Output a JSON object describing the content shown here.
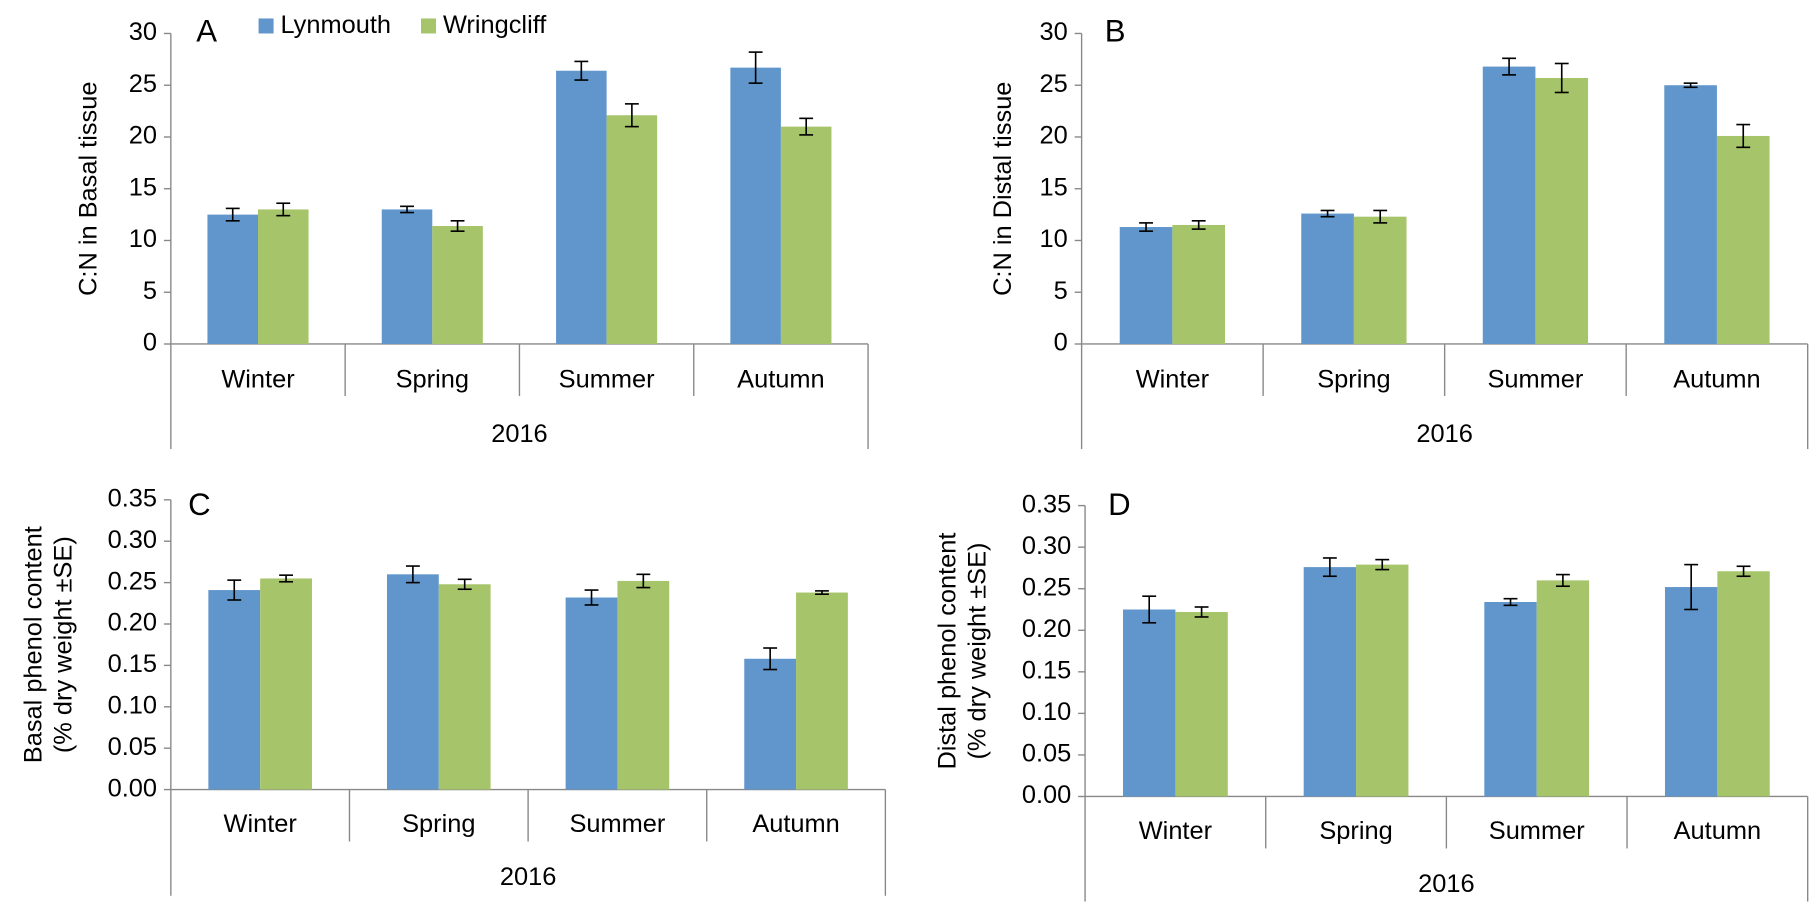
{
  "chart_data": [
    {
      "type": "bar",
      "panel": "A",
      "ylabel": [
        "C:N in Basal tissue"
      ],
      "group": "2016",
      "categories": [
        "Winter",
        "Spring",
        "Summer",
        "Autumn"
      ],
      "legend": "top",
      "series": [
        {
          "name": "Lynmouth",
          "color": "#6096cb",
          "values": [
            12.5,
            13,
            26.4,
            26.7
          ],
          "errors": [
            0.6,
            0.3,
            0.9,
            1.5
          ]
        },
        {
          "name": "Wringcliff",
          "color": "#a6c46a",
          "values": [
            13,
            11.4,
            22.1,
            21
          ],
          "errors": [
            0.6,
            0.5,
            1.1,
            0.8
          ]
        }
      ],
      "ylim": [
        0,
        30
      ],
      "yticks": [
        0,
        5,
        10,
        15,
        20,
        25,
        30
      ]
    },
    {
      "type": "bar",
      "panel": "B",
      "ylabel": [
        "C:N in Distal tissue"
      ],
      "group": "2016",
      "categories": [
        "Winter",
        "Spring",
        "Summer",
        "Autumn"
      ],
      "series": [
        {
          "name": "Lynmouth",
          "color": "#6096cb",
          "values": [
            11.3,
            12.6,
            26.8,
            25
          ],
          "errors": [
            0.4,
            0.3,
            0.8,
            0.2
          ]
        },
        {
          "name": "Wringcliff",
          "color": "#a6c46a",
          "values": [
            11.5,
            12.3,
            25.7,
            20.1
          ],
          "errors": [
            0.4,
            0.6,
            1.4,
            1.1
          ]
        }
      ],
      "ylim": [
        0,
        30
      ],
      "yticks": [
        0,
        5,
        10,
        15,
        20,
        25,
        30
      ]
    },
    {
      "type": "bar",
      "panel": "C",
      "ylabel": [
        "Basal phenol content",
        "(% dry weight ±SE)"
      ],
      "group": "2016",
      "categories": [
        "Winter",
        "Spring",
        "Summer",
        "Autumn"
      ],
      "series": [
        {
          "name": "Lynmouth",
          "color": "#6096cb",
          "values": [
            0.241,
            0.26,
            0.232,
            0.158
          ],
          "errors": [
            0.012,
            0.01,
            0.009,
            0.013
          ]
        },
        {
          "name": "Wringcliff",
          "color": "#a6c46a",
          "values": [
            0.255,
            0.248,
            0.252,
            0.238
          ],
          "errors": [
            0.004,
            0.006,
            0.008,
            0.002
          ]
        }
      ],
      "ylim": [
        0,
        0.35
      ],
      "yticks": [
        {
          "value": 0,
          "label": "0.00"
        },
        0.05,
        {
          "value": 0.1,
          "label": "0.10"
        },
        0.15,
        {
          "value": 0.2,
          "label": "0.20"
        },
        0.25,
        {
          "value": 0.3,
          "label": "0.30"
        },
        0.35
      ]
    },
    {
      "type": "bar",
      "panel": "D",
      "ylabel": [
        "Distal phenol content",
        "(% dry weight ±SE)"
      ],
      "group": "2016",
      "categories": [
        "Winter",
        "Spring",
        "Summer",
        "Autumn"
      ],
      "series": [
        {
          "name": "Lynmouth",
          "color": "#6096cb",
          "values": [
            0.225,
            0.276,
            0.234,
            0.252
          ],
          "errors": [
            0.016,
            0.011,
            0.004,
            0.027
          ]
        },
        {
          "name": "Wringcliff",
          "color": "#a6c46a",
          "values": [
            0.222,
            0.279,
            0.26,
            0.271
          ],
          "errors": [
            0.006,
            0.006,
            0.007,
            0.006
          ]
        }
      ],
      "ylim": [
        0,
        0.35
      ],
      "yticks": [
        {
          "value": 0,
          "label": "0.00"
        },
        0.05,
        {
          "value": 0.1,
          "label": "0.10"
        },
        0.15,
        {
          "value": 0.2,
          "label": "0.20"
        },
        0.25,
        {
          "value": 0.3,
          "label": "0.30"
        },
        0.35
      ]
    }
  ]
}
